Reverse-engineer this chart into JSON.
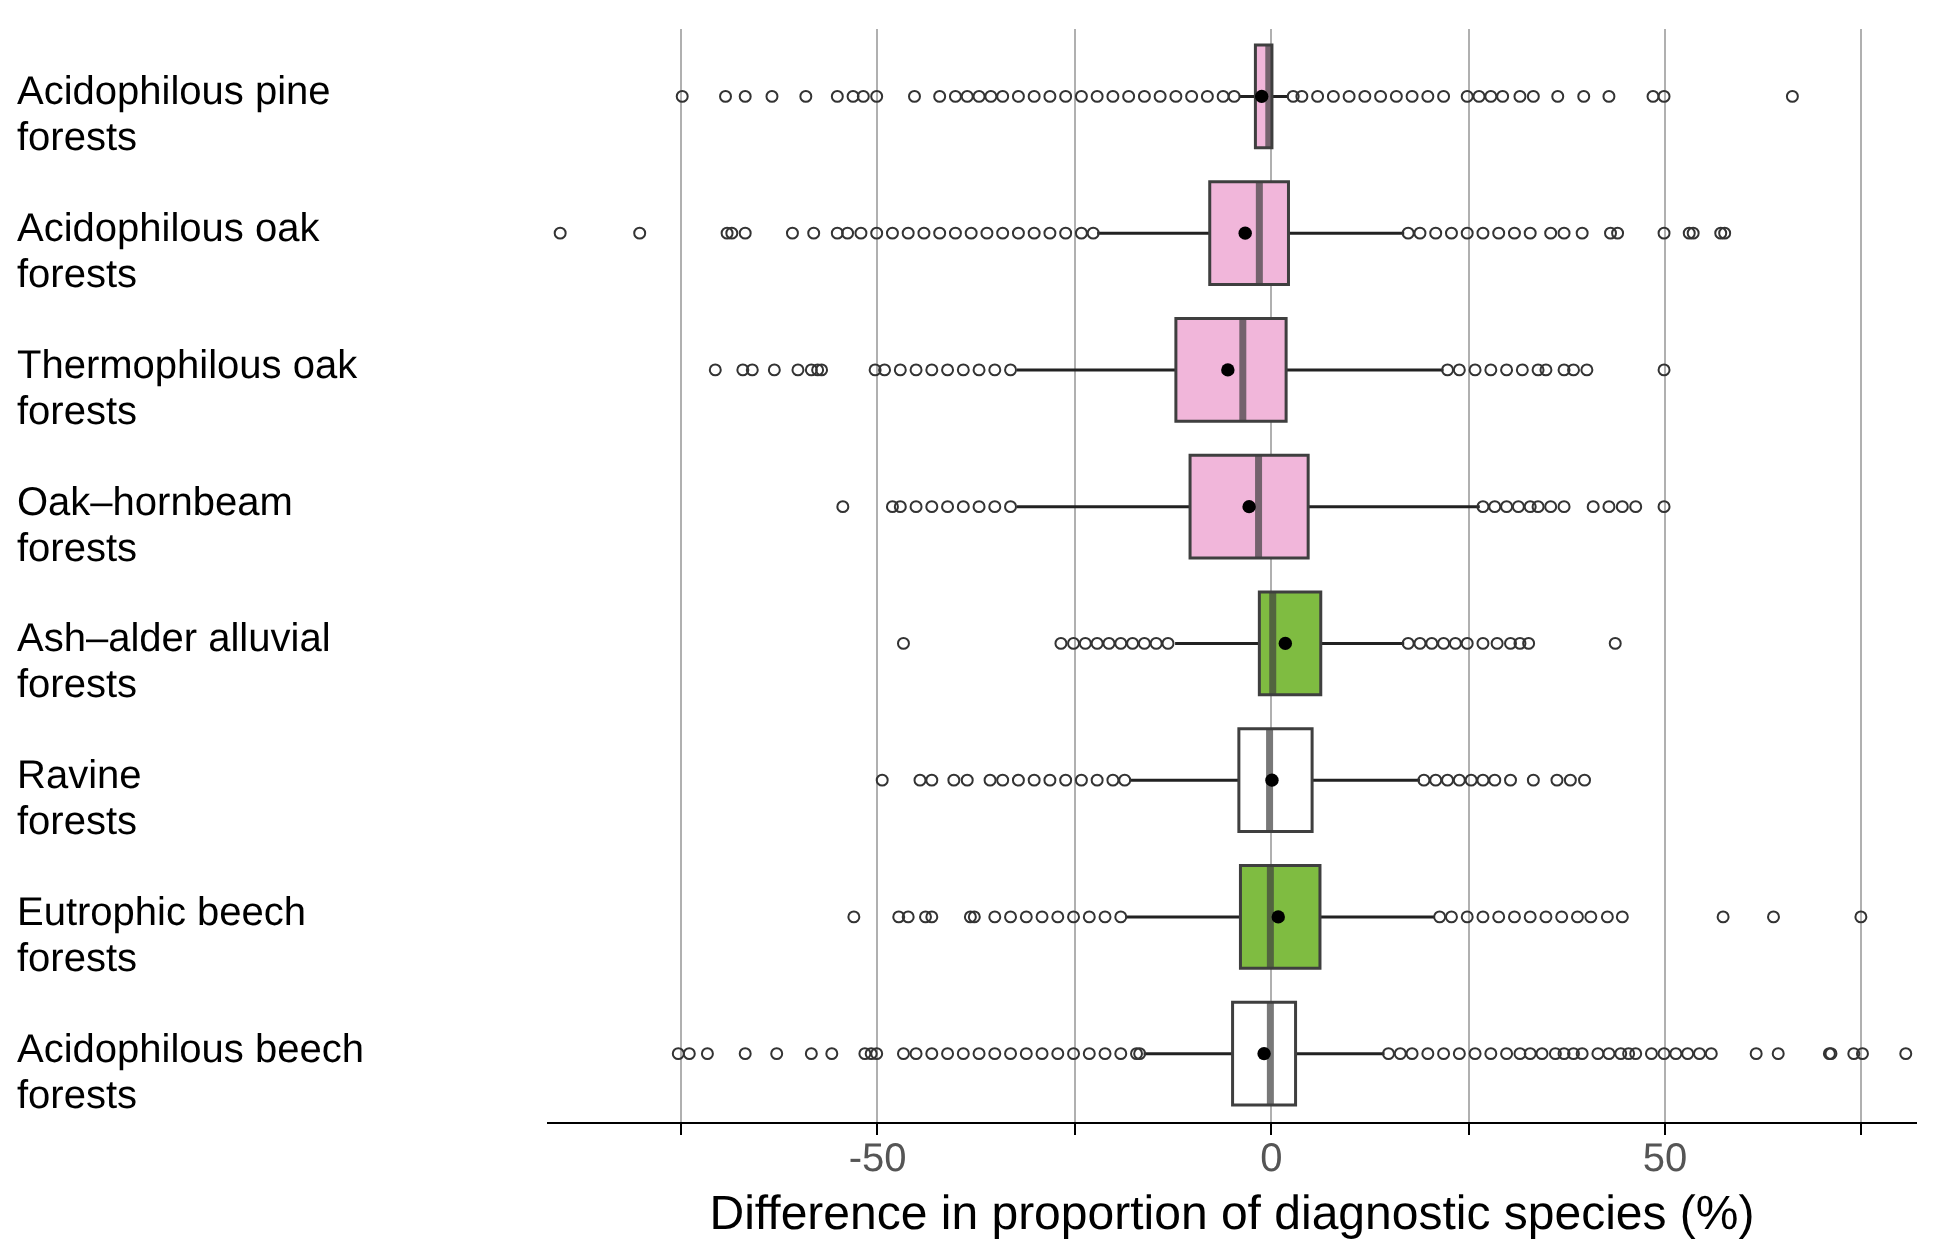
{
  "chart_data": {
    "type": "box",
    "orientation": "horizontal",
    "xlabel": "Difference in proportion of diagnostic species (%)",
    "categories": [
      "Acidophilous pine forests",
      "Acidophilous oak forests",
      "Thermophilous oak forests",
      "Oak–hornbeam forests",
      "Ash–alder alluvial forests",
      "Ravine forests",
      "Eutrophic beech forests",
      "Acidophilous beech forests"
    ],
    "colors": [
      "#f1b6da",
      "#f1b6da",
      "#f1b6da",
      "#f1b6da",
      "#7fbc41",
      "#ffffff",
      "#7fbc41",
      "#ffffff"
    ],
    "boxes": [
      {
        "low": -4,
        "q1": -1.9,
        "median": -0.2,
        "q3": 0.2,
        "high": 2.3,
        "mean": -1.1,
        "outliers": [
          -74.7,
          -69.2,
          -66.7,
          -63.3,
          -59,
          -55,
          -53,
          -51.7,
          -50,
          -45.2,
          -42,
          -40,
          -38.5,
          -37,
          -35.5,
          -34,
          -32,
          -30,
          -28,
          -26,
          -24,
          -22,
          -20,
          -18,
          -16,
          -14,
          -12,
          -10,
          -8,
          -6,
          -4.6,
          2.9,
          4,
          6,
          8,
          10,
          12,
          14,
          16,
          18,
          20,
          22,
          25,
          26.5,
          28,
          29.5,
          31.7,
          33.4,
          36.5,
          39.8,
          43,
          48.6,
          50,
          66.3
        ]
      },
      {
        "low": -22,
        "q1": -7.7,
        "median": -1.4,
        "q3": 2.3,
        "high": 17,
        "mean": -3.2,
        "outliers": [
          -90.2,
          -80.1,
          -69,
          -68.4,
          -66.7,
          -60.7,
          -58,
          -55,
          -53.7,
          -52,
          -50,
          -48,
          -46,
          -44,
          -42,
          -40,
          -38,
          -36,
          -34,
          -32,
          -30,
          -28,
          -26,
          -24,
          -22.5,
          17.5,
          19,
          21,
          23,
          25,
          27,
          29,
          31,
          33,
          35.6,
          37.3,
          39.6,
          43.2,
          44.1,
          50,
          53.2,
          53.7,
          57.2,
          57.7
        ]
      },
      {
        "low": -32.2,
        "q1": -12,
        "median": -3.5,
        "q3": 2,
        "high": 22,
        "mean": -5.4,
        "outliers": [
          -70.5,
          -67,
          -65.8,
          -63,
          -60,
          -58.3,
          -57.5,
          -57,
          -50.2,
          -49,
          -47,
          -45,
          -43,
          -41,
          -39,
          -37,
          -35,
          -33,
          22.5,
          24,
          26,
          28,
          30,
          32,
          34,
          35,
          37.3,
          38.5,
          40.2,
          50
        ]
      },
      {
        "low": -32.2,
        "q1": -10.2,
        "median": -1.5,
        "q3": 4.8,
        "high": 26.6,
        "mean": -2.7,
        "outliers": [
          -54.3,
          -48,
          -47,
          -45,
          -43,
          -41,
          -39,
          -37,
          -35,
          -33,
          27,
          28.5,
          30,
          31.5,
          33,
          34,
          35.6,
          37.3,
          41,
          43,
          44.7,
          46.4,
          50
        ]
      },
      {
        "low": -12.1,
        "q1": -1.4,
        "median": 0.3,
        "q3": 6.4,
        "high": 17,
        "mean": 1.9,
        "outliers": [
          -46.6,
          -26.6,
          -25,
          -23.5,
          -22,
          -20.5,
          -19,
          -17.5,
          -16,
          -14.5,
          -13,
          17.5,
          19,
          20.5,
          22,
          23.5,
          25,
          27,
          28.8,
          30.5,
          31.7,
          32.8,
          43.8
        ]
      },
      {
        "low": -17.9,
        "q1": -4,
        "median": -0.1,
        "q3": 5.3,
        "high": 19,
        "mean": 0.2,
        "outliers": [
          -49.3,
          -44.5,
          -43,
          -40.2,
          -38.5,
          -35.6,
          -34,
          -32,
          -30,
          -28,
          -26,
          -24,
          -22,
          -20,
          -18.5,
          19.5,
          21,
          22.5,
          24,
          25.5,
          27,
          28.5,
          30.5,
          33.4,
          36.4,
          38.1,
          39.9
        ]
      },
      {
        "low": -18.4,
        "q1": -3.8,
        "median": 0,
        "q3": 6.3,
        "high": 20.9,
        "mean": 1,
        "outliers": [
          -52.9,
          -47.2,
          -46,
          -43.8,
          -43,
          -38.1,
          -37.6,
          -35,
          -33,
          -31,
          -29,
          -27,
          -25,
          -23,
          -21,
          -19,
          21.5,
          23,
          25,
          27,
          29,
          31,
          33,
          35,
          37,
          39,
          40.7,
          42.8,
          44.7,
          57.5,
          63.9,
          75
        ]
      },
      {
        "low": -16.1,
        "q1": -4.8,
        "median": 0,
        "q3": 3.2,
        "high": 14.5,
        "mean": -0.8,
        "outliers": [
          -75.2,
          -73.8,
          -71.5,
          -66.7,
          -62.7,
          -58.3,
          -55.7,
          -51.5,
          -50.7,
          -50,
          -46.6,
          -45,
          -43,
          -41,
          -39,
          -37,
          -35,
          -33,
          -31,
          -29,
          -27,
          -25,
          -23,
          -21,
          -19,
          -17,
          -16.6,
          15,
          16.5,
          18,
          20,
          22,
          24,
          26,
          28,
          30,
          31.7,
          33,
          34.5,
          36.2,
          37.3,
          38.5,
          39.6,
          41.6,
          43,
          44.5,
          45.5,
          46.4,
          48.4,
          50,
          51.5,
          53,
          54.5,
          56,
          61.7,
          64.5,
          71,
          71.2,
          74.1,
          75.2,
          80.7
        ]
      }
    ],
    "xlim": [
      -92,
      82
    ],
    "xticks": [
      {
        "value": -75,
        "label": null
      },
      -50,
      {
        "value": -25,
        "label": null
      },
      0,
      {
        "value": 25,
        "label": null
      },
      50,
      {
        "value": 75,
        "label": null
      }
    ],
    "grid": "x"
  }
}
